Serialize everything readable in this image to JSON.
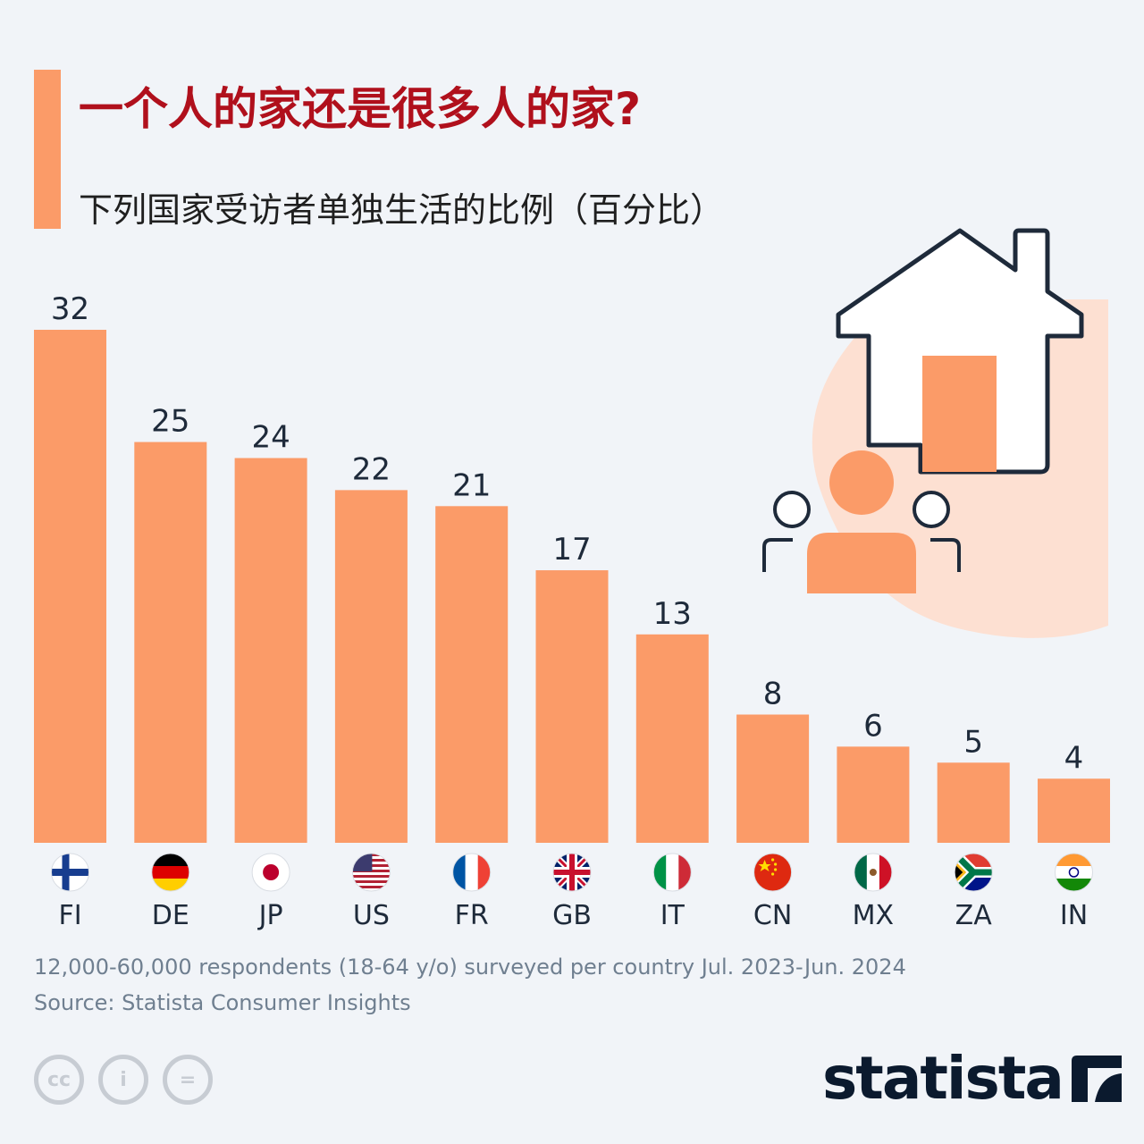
{
  "header": {
    "title": "一个人的家还是很多人的家?",
    "subtitle": "下列国家受访者单独生活的比例（百分比）"
  },
  "colors": {
    "bar": "#fb9b68",
    "title": "#b0101c",
    "text": "#1e2a3a",
    "muted": "#6f7f90",
    "background": "#f1f4f8"
  },
  "illustration": {
    "icon": "house-with-people-icon"
  },
  "chart_data": {
    "type": "bar",
    "title": "一个人的家还是很多人的家?",
    "subtitle": "下列国家受访者单独生活的比例（百分比）",
    "xlabel": "",
    "ylabel": "",
    "categories": [
      "FI",
      "DE",
      "JP",
      "US",
      "FR",
      "GB",
      "IT",
      "CN",
      "MX",
      "ZA",
      "IN"
    ],
    "values": [
      32,
      25,
      24,
      22,
      21,
      17,
      13,
      8,
      6,
      5,
      4
    ],
    "ylim": [
      0,
      32
    ],
    "grid": false,
    "legend": "none",
    "data_labels": true,
    "flags": [
      "finland-flag-icon",
      "germany-flag-icon",
      "japan-flag-icon",
      "usa-flag-icon",
      "france-flag-icon",
      "uk-flag-icon",
      "italy-flag-icon",
      "china-flag-icon",
      "mexico-flag-icon",
      "south-africa-flag-icon",
      "india-flag-icon"
    ]
  },
  "footer": {
    "note": "12,000-60,000 respondents (18-64 y/o) surveyed per country Jul. 2023-Jun. 2024",
    "source": "Source: Statista Consumer Insights",
    "license_icons": [
      "cc-icon",
      "attribution-icon",
      "no-derivatives-icon"
    ],
    "license_glyphs": [
      "cc",
      "i",
      "="
    ],
    "brand": "statista"
  }
}
